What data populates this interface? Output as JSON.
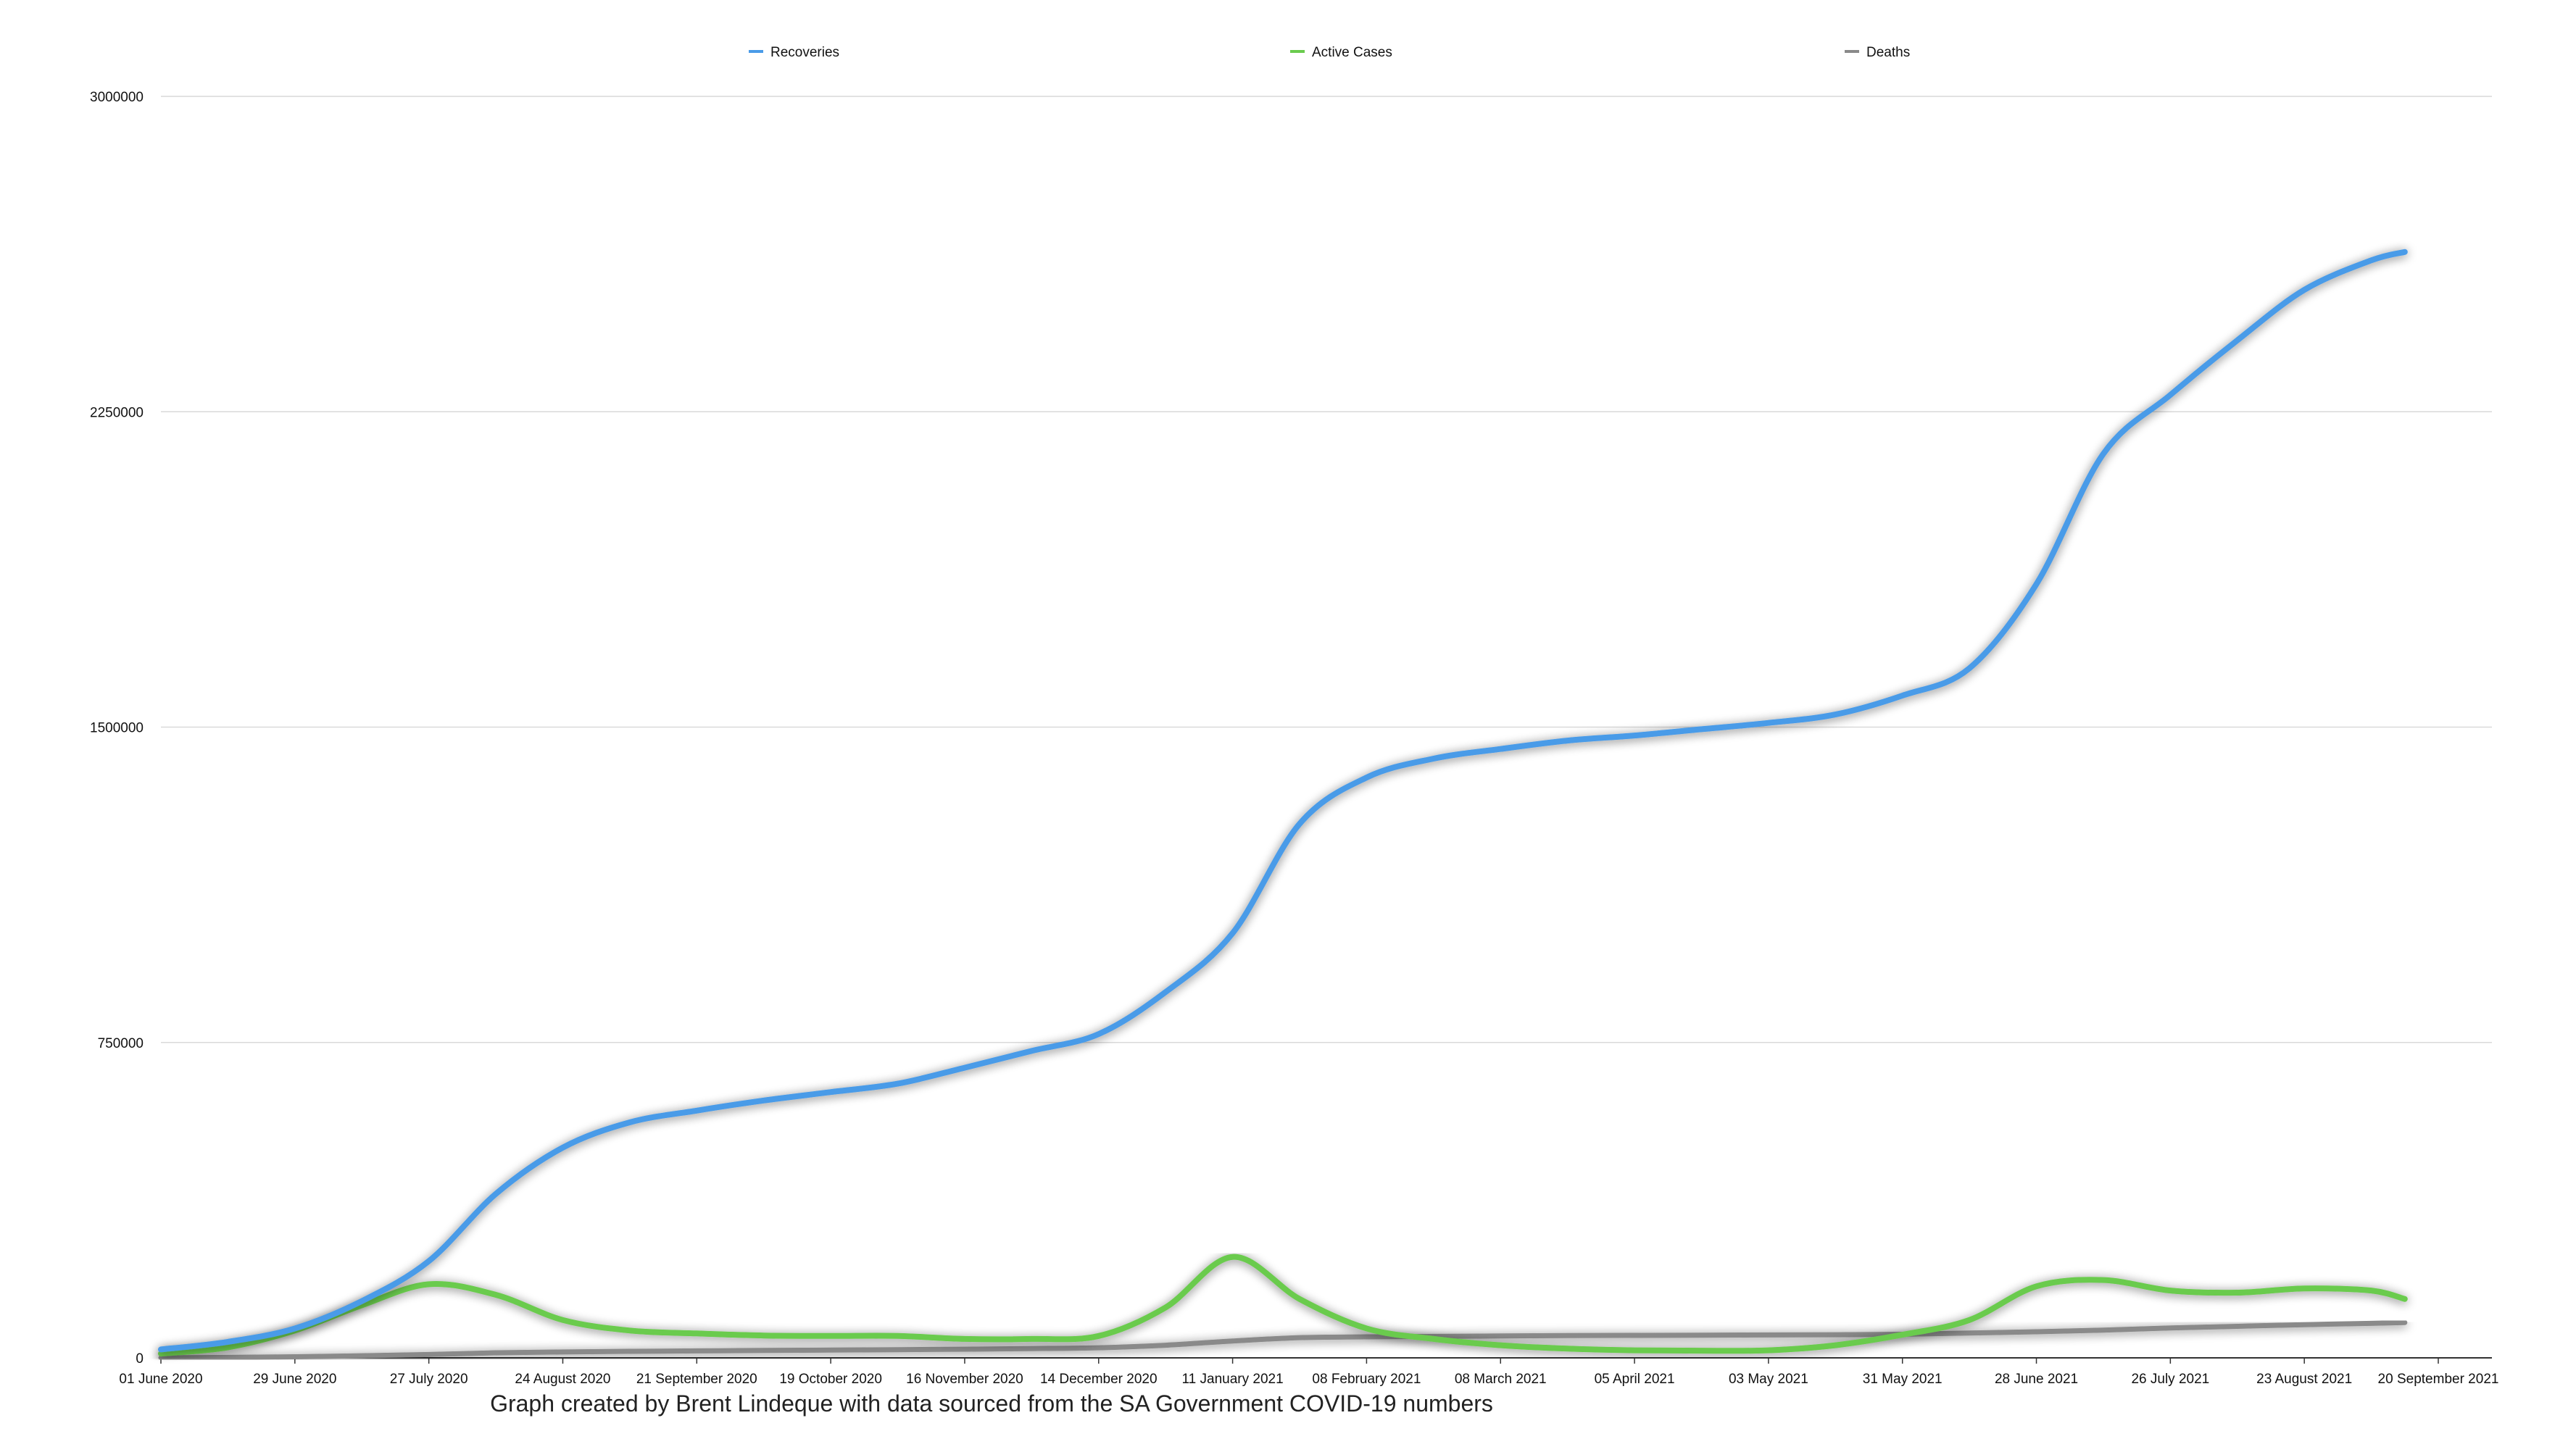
{
  "chart_data": {
    "type": "line",
    "title": "",
    "xlabel": "",
    "ylabel": "",
    "caption": "Graph created by Brent Lindeque with data sourced from the SA Government COVID-19 numbers",
    "x_tick_labels": [
      "01 June 2020",
      "29 June 2020",
      "27 July 2020",
      "24 August 2020",
      "21 September 2020",
      "19 October 2020",
      "16 November 2020",
      "14 December 2020",
      "11 January 2021",
      "08 February 2021",
      "08 March 2021",
      "05 April 2021",
      "03 May 2021",
      "31 May 2021",
      "28 June 2021",
      "26 July 2021",
      "23 August 2021",
      "20 September 2021"
    ],
    "y_tick_labels": [
      "0",
      "750000",
      "1500000",
      "2250000",
      "3000000"
    ],
    "ylim": [
      0,
      3000000
    ],
    "grid": true,
    "legend_position": "top",
    "x": [
      "01 June 2020",
      "15 June 2020",
      "29 June 2020",
      "13 July 2020",
      "27 July 2020",
      "10 August 2020",
      "24 August 2020",
      "07 September 2020",
      "21 September 2020",
      "05 October 2020",
      "19 October 2020",
      "02 November 2020",
      "16 November 2020",
      "30 November 2020",
      "14 December 2020",
      "28 December 2020",
      "11 January 2021",
      "25 January 2021",
      "08 February 2021",
      "22 February 2021",
      "08 March 2021",
      "22 March 2021",
      "05 April 2021",
      "19 April 2021",
      "03 May 2021",
      "17 May 2021",
      "31 May 2021",
      "14 June 2021",
      "28 June 2021",
      "12 July 2021",
      "26 July 2021",
      "09 August 2021",
      "23 August 2021",
      "06 September 2021",
      "13 September 2021"
    ],
    "series": [
      {
        "name": "Recoveries",
        "color": "#4a9be8",
        "values": [
          20000,
          38000,
          70000,
          135000,
          230000,
          390000,
          500000,
          560000,
          588000,
          612000,
          632000,
          652000,
          690000,
          730000,
          770000,
          870000,
          1010000,
          1270000,
          1380000,
          1425000,
          1448000,
          1468000,
          1480000,
          1495000,
          1510000,
          1530000,
          1575000,
          1640000,
          1840000,
          2150000,
          2290000,
          2420000,
          2540000,
          2610000,
          2630000
        ]
      },
      {
        "name": "Active Cases",
        "color": "#6acb4e",
        "values": [
          10000,
          25000,
          65000,
          125000,
          175000,
          150000,
          90000,
          65000,
          58000,
          53000,
          52000,
          52000,
          45000,
          45000,
          52000,
          120000,
          240000,
          140000,
          70000,
          45000,
          30000,
          22000,
          18000,
          17000,
          18000,
          30000,
          55000,
          90000,
          170000,
          185000,
          160000,
          155000,
          165000,
          160000,
          140000
        ]
      },
      {
        "name": "Deaths",
        "color": "#8a8a8a",
        "values": [
          200,
          1000,
          2500,
          5000,
          8000,
          12000,
          14000,
          15500,
          16500,
          17500,
          18500,
          19500,
          20500,
          22000,
          24000,
          30000,
          40000,
          48000,
          50000,
          51000,
          52000,
          53000,
          53500,
          54000,
          54500,
          55000,
          56000,
          59000,
          62000,
          66000,
          71000,
          75000,
          79000,
          82000,
          84000
        ]
      }
    ]
  }
}
